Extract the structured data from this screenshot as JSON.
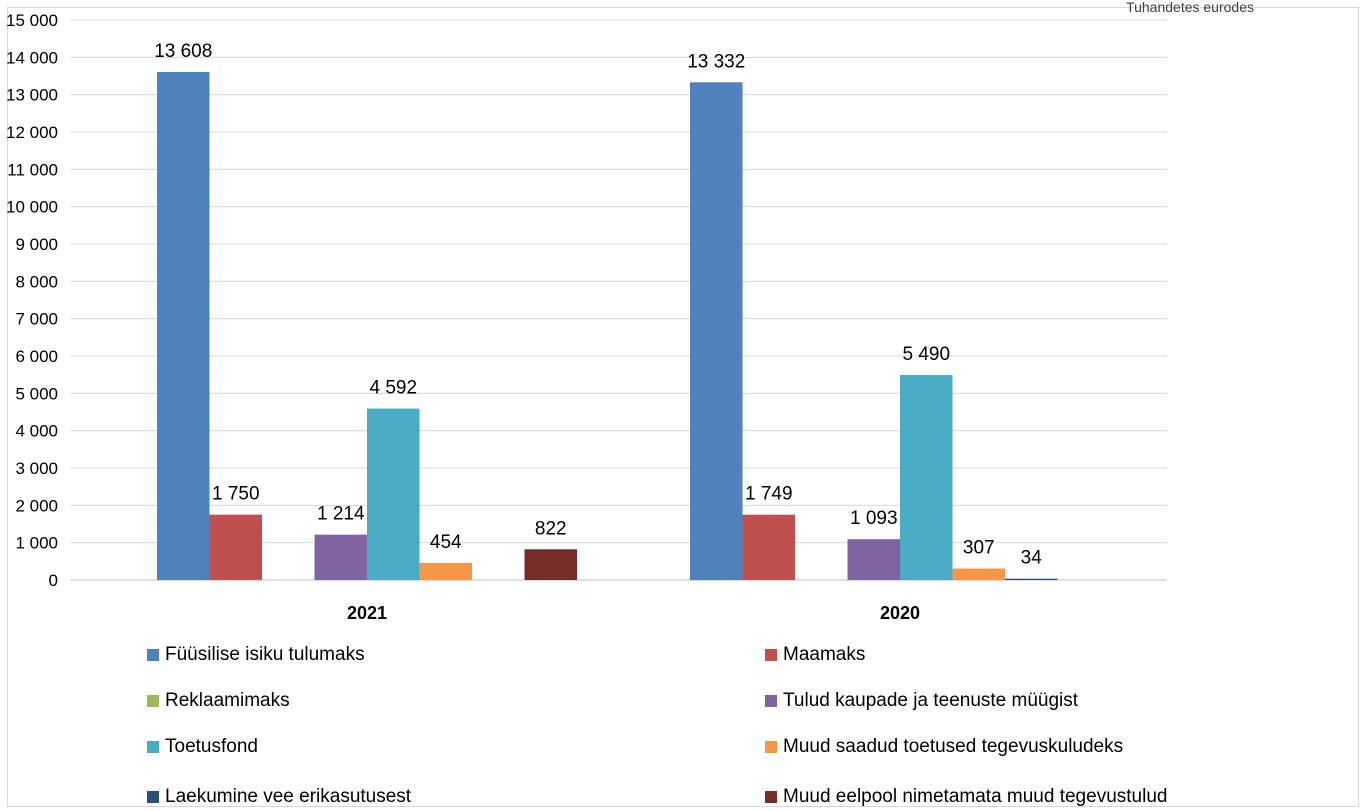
{
  "header": {
    "corner_text": "Tuhandetes eurodes"
  },
  "chart_data": {
    "type": "bar",
    "title": "",
    "xlabel": "",
    "ylabel": "",
    "ylim": [
      0,
      15000
    ],
    "ytick_step": 1000,
    "yticks": [
      "0",
      "1 000",
      "2 000",
      "3 000",
      "4 000",
      "5 000",
      "6 000",
      "7 000",
      "8 000",
      "9 000",
      "10 000",
      "11 000",
      "12 000",
      "13 000",
      "14 000",
      "15 000"
    ],
    "grid": true,
    "legend_position": "bottom",
    "categories": [
      "2021",
      "2020"
    ],
    "series": [
      {
        "name": "Füüsilise isiku tulumaks",
        "color": "#4f81bd",
        "values": [
          13608,
          13332
        ],
        "labels": [
          "13 608",
          "13 332"
        ]
      },
      {
        "name": "Maamaks",
        "color": "#c0504d",
        "values": [
          1750,
          1749
        ],
        "labels": [
          "1 750",
          "1 749"
        ]
      },
      {
        "name": "Reklaamimaks",
        "color": "#9bbb59",
        "values": [
          0,
          0
        ],
        "labels": [
          "",
          ""
        ]
      },
      {
        "name": "Tulud kaupade ja teenuste müügist",
        "color": "#8064a2",
        "values": [
          1214,
          1093
        ],
        "labels": [
          "1 214",
          "1 093"
        ]
      },
      {
        "name": "Toetusfond",
        "color": "#4bacc6",
        "values": [
          4592,
          5490
        ],
        "labels": [
          "4 592",
          "5 490"
        ]
      },
      {
        "name": "Muud saadud toetused tegevuskuludeks",
        "color": "#f79646",
        "values": [
          454,
          307
        ],
        "labels": [
          "454",
          "307"
        ]
      },
      {
        "name": "Laekumine vee erikasutusest",
        "color": "#2c4d75",
        "values": [
          0,
          34
        ],
        "labels": [
          "",
          "34"
        ]
      },
      {
        "name": "Muud eelpool nimetamata muud tegevustulud",
        "color": "#772c2a",
        "values": [
          822,
          0
        ],
        "labels": [
          "822",
          ""
        ]
      }
    ]
  }
}
